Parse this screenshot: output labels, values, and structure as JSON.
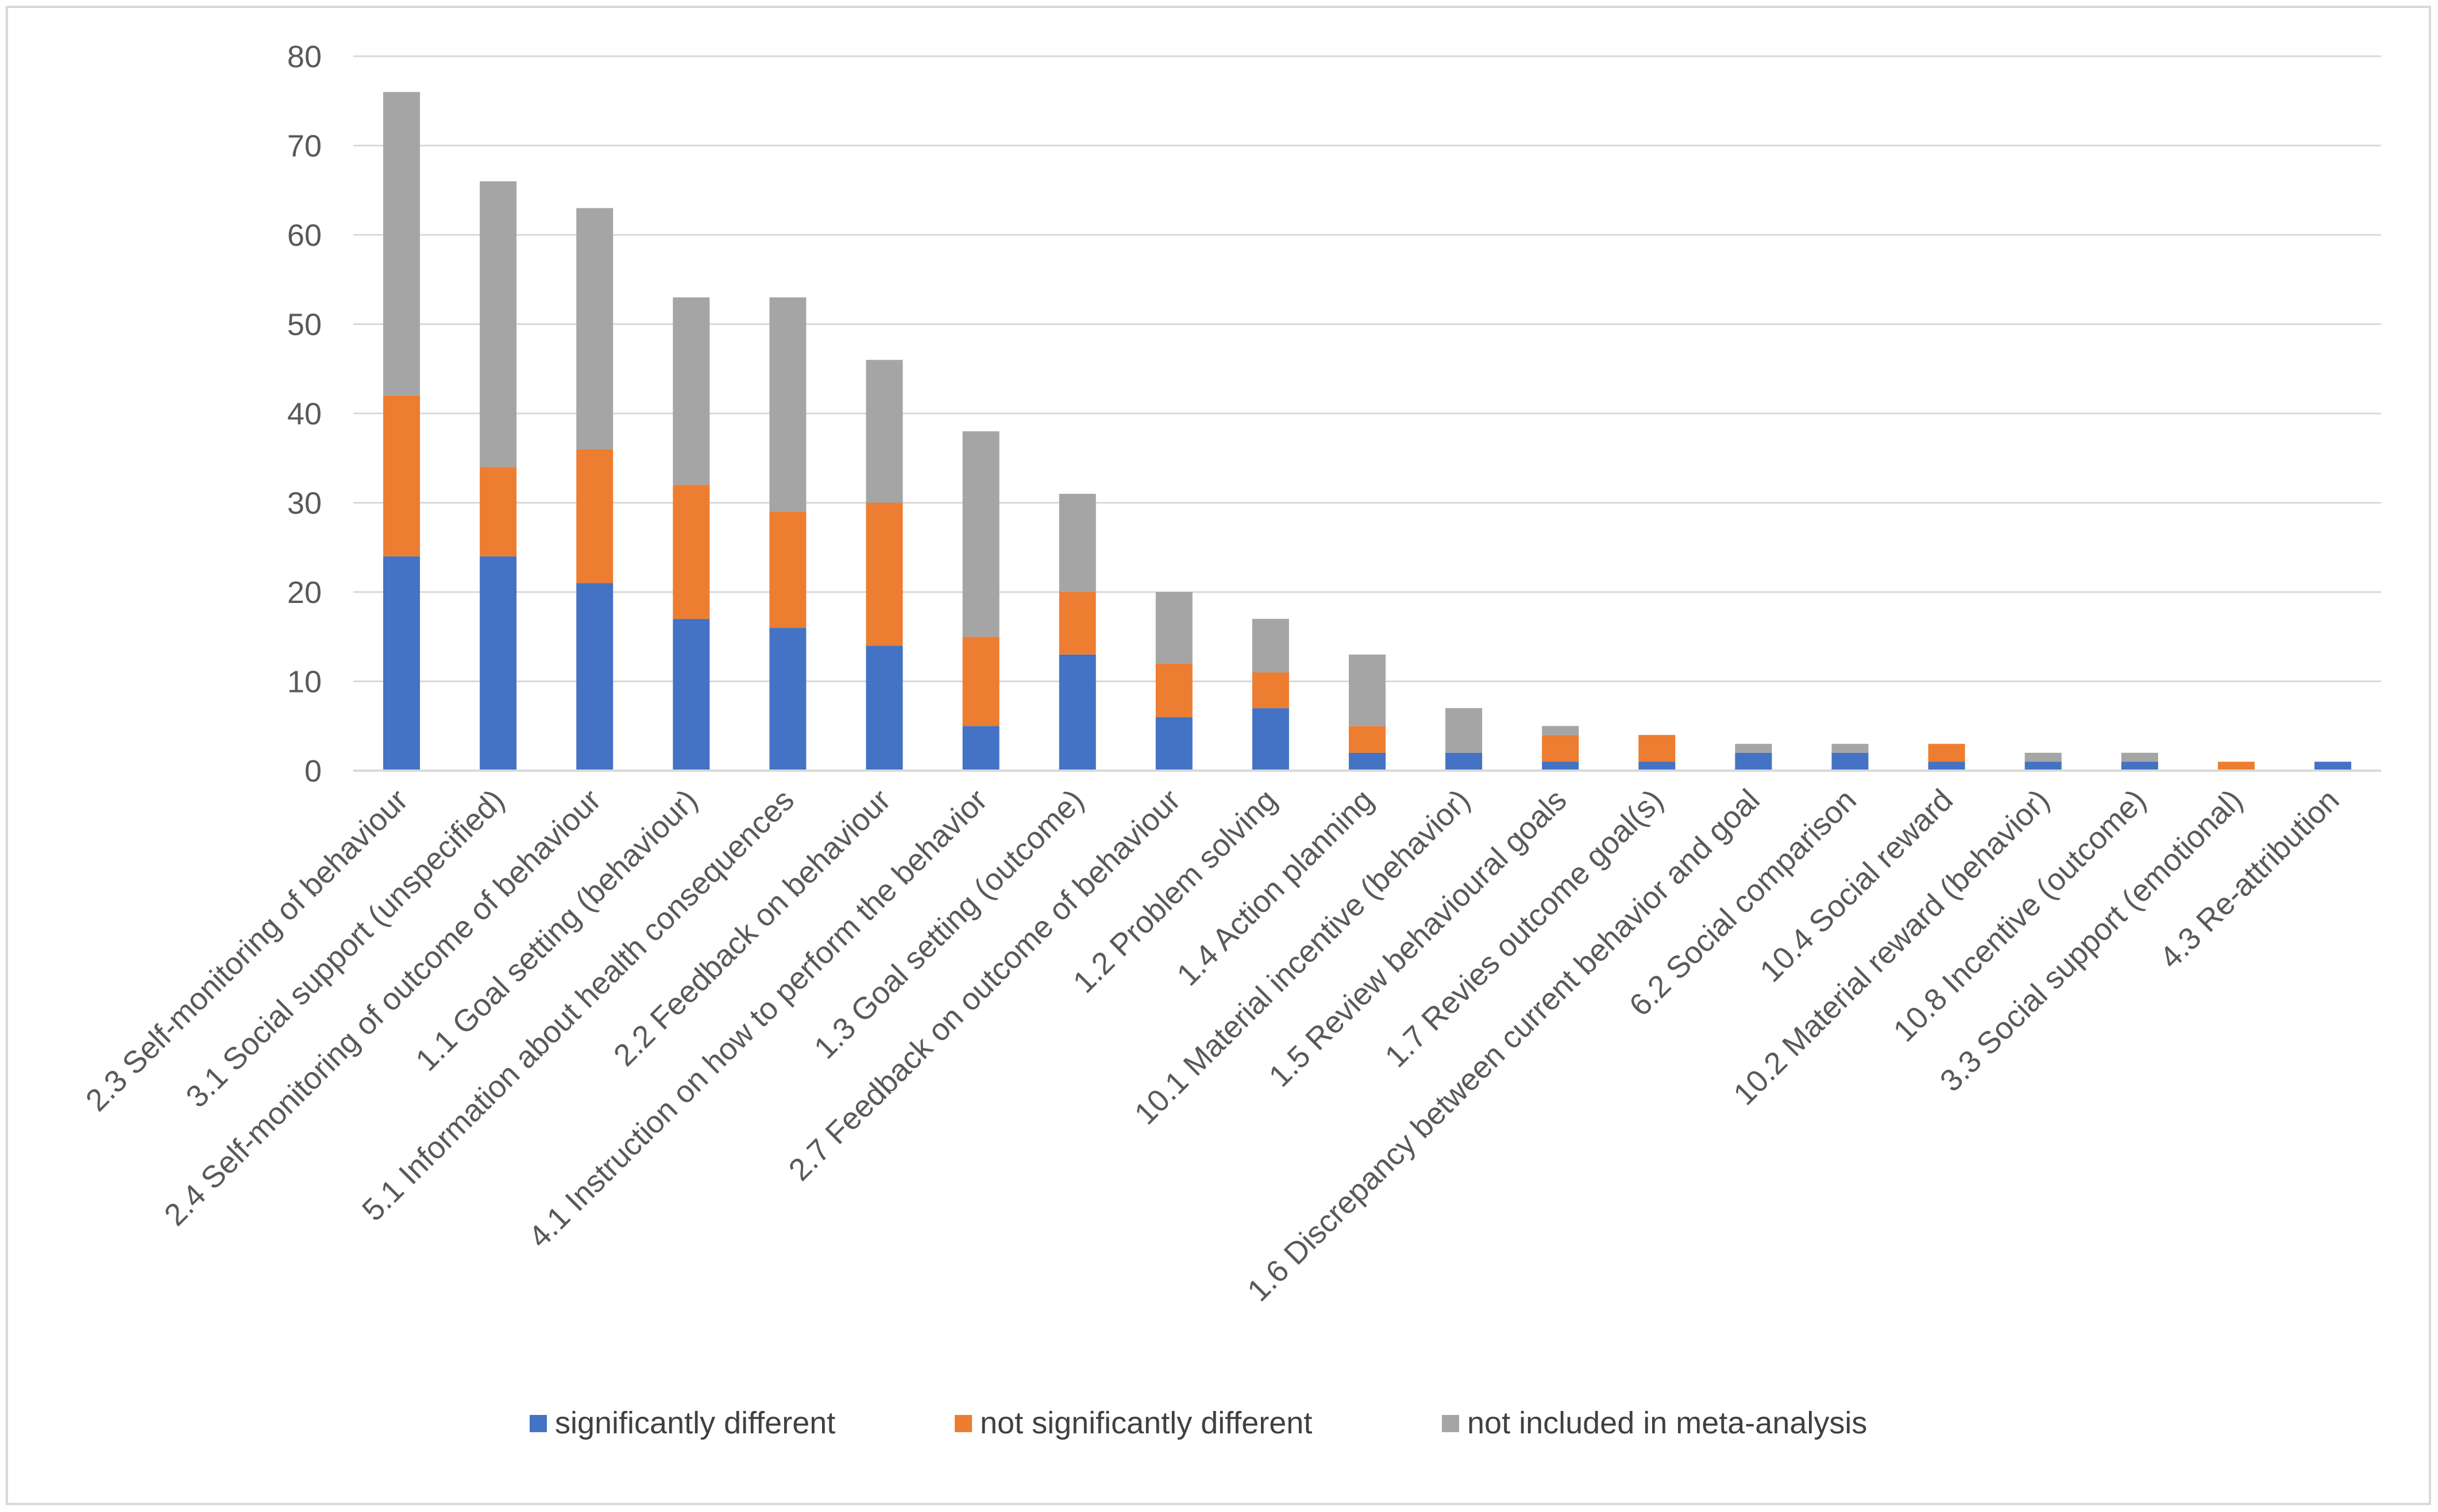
{
  "chart_data": {
    "type": "bar",
    "stacked": true,
    "title": "",
    "xlabel": "",
    "ylabel": "",
    "ylim": [
      0,
      80
    ],
    "yticks": [
      0,
      10,
      20,
      30,
      40,
      50,
      60,
      70,
      80
    ],
    "grid": true,
    "legend_position": "bottom",
    "categories": [
      "2.3 Self-monitoring of behaviour",
      "3.1 Social support (unspecified)",
      "2.4 Self-monitoring of outcome of behaviour",
      "1.1 Goal setting (behaviour)",
      "5.1 Information about health consequences",
      "2.2 Feedback on behaviour",
      "4.1 Instruction on how to perform the behavior",
      "1.3 Goal setting (outcome)",
      "2.7 Feedback on outcome of behaviour",
      "1.2 Problem solving",
      "1.4 Action planning",
      "10.1 Material incentive (behavior)",
      "1.5 Review behavioural goals",
      "1.7 Revies outcome goal(s)",
      "1.6 Discrepancy between current behavior and goal",
      "6.2 Social comparison",
      "10.4 Social reward",
      "10.2 Material reward (behavior)",
      "10.8 Incentive (outcome)",
      "3.3 Social support (emotional)",
      "4.3 Re-attribution"
    ],
    "series": [
      {
        "name": "significantly different",
        "color": "#4472c4",
        "values": [
          24,
          24,
          21,
          17,
          16,
          14,
          5,
          13,
          6,
          7,
          2,
          2,
          1,
          1,
          2,
          2,
          1,
          1,
          1,
          0,
          1
        ]
      },
      {
        "name": "not significantly different",
        "color": "#ed7d31",
        "values": [
          18,
          10,
          15,
          15,
          13,
          16,
          10,
          7,
          6,
          4,
          3,
          0,
          3,
          3,
          0,
          0,
          2,
          0,
          0,
          1,
          0
        ]
      },
      {
        "name": "not included in meta-analysis",
        "color": "#a5a5a5",
        "values": [
          34,
          32,
          27,
          21,
          24,
          16,
          23,
          11,
          8,
          6,
          8,
          5,
          1,
          0,
          1,
          1,
          0,
          1,
          1,
          0,
          0
        ]
      }
    ]
  }
}
